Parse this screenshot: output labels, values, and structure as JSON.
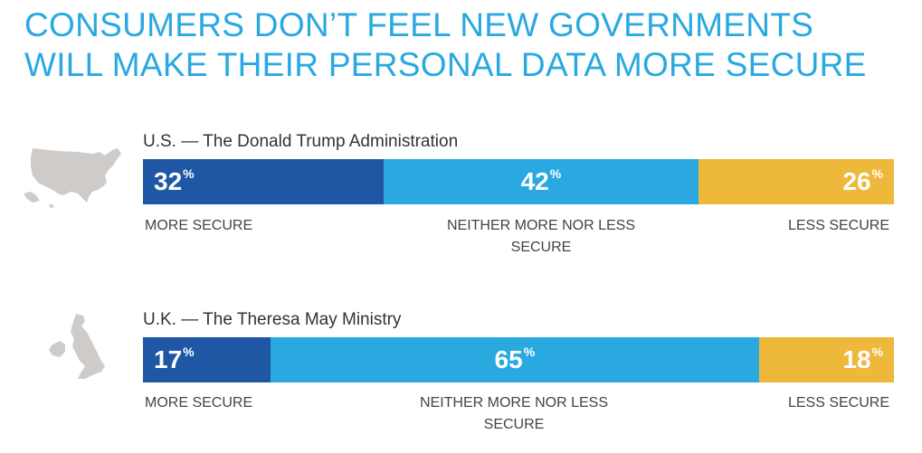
{
  "title_line1": "CONSUMERS DON’T FEEL NEW GOVERNMENTS",
  "title_line2": "WILL MAKE THEIR PERSONAL DATA MORE SECURE",
  "colors": {
    "title": "#29a9e0",
    "more_secure": "#1f57a5",
    "neither": "#29a9e0",
    "less_secure": "#eeb83a",
    "map": "#cfcbc8"
  },
  "labels": {
    "more": "MORE SECURE",
    "neither": "NEITHER MORE NOR LESS SECURE",
    "less": "LESS SECURE"
  },
  "chart_data": [
    {
      "type": "bar",
      "stacked": true,
      "orientation": "horizontal",
      "title": "U.S. — The Donald Trump Administration",
      "unit": "%",
      "categories": [
        "MORE SECURE",
        "NEITHER MORE NOR LESS SECURE",
        "LESS SECURE"
      ],
      "values": [
        32,
        42,
        26
      ],
      "icon": "usa-map-icon"
    },
    {
      "type": "bar",
      "stacked": true,
      "orientation": "horizontal",
      "title": "U.K. — The Theresa May Ministry",
      "unit": "%",
      "categories": [
        "MORE SECURE",
        "NEITHER MORE NOR LESS SECURE",
        "LESS SECURE"
      ],
      "values": [
        17,
        65,
        18
      ],
      "icon": "uk-map-icon"
    }
  ]
}
